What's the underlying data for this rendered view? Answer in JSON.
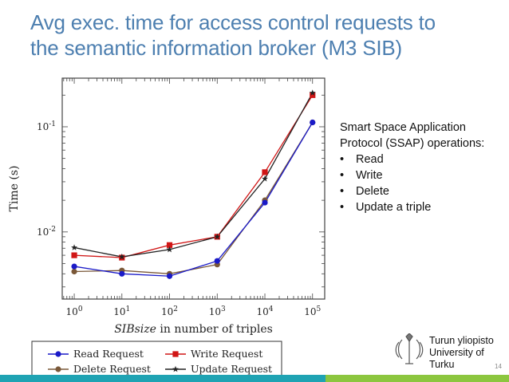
{
  "slide": {
    "title_line1": "Avg exec. time for access control  requests to",
    "title_line2": "the semantic information broker (M3 SIB)",
    "side_intro": "Smart Space Application Protocol (SSAP) operations:",
    "side_bullets": [
      "Read",
      "Write",
      "Delete",
      "Update a triple"
    ],
    "logo_line1": "Turun yliopisto",
    "logo_line2": "University of Turku",
    "page_number": "14",
    "colors": {
      "title": "#4d7fb0",
      "footer_teal": "#1fa3b3",
      "footer_green": "#8cc63f"
    }
  },
  "chart_data": {
    "type": "line",
    "xscale": "log",
    "yscale": "log",
    "x": [
      1,
      10,
      100,
      1000,
      10000,
      100000
    ],
    "x_tick_labels": [
      "10^0",
      "10^1",
      "10^2",
      "10^3",
      "10^4",
      "10^5"
    ],
    "y_tick_labels": [
      "10^-1",
      "10^-2"
    ],
    "xlabel": "SIBsize in number of triples",
    "xlabel_italic": "SIBsize",
    "xlabel_rest": " in number of triples",
    "ylabel": "Time (s)",
    "xlim": [
      0.56,
      180000
    ],
    "ylim": [
      0.0023,
      0.29
    ],
    "grid": false,
    "legend_position": "bottom-outside",
    "series": [
      {
        "name": "Read Request",
        "color": "#1a1ac8",
        "marker": "circle",
        "values": [
          0.0047,
          0.004,
          0.0038,
          0.0053,
          0.019,
          0.11
        ]
      },
      {
        "name": "Write Request",
        "color": "#d01515",
        "marker": "square",
        "values": [
          0.006,
          0.0057,
          0.0075,
          0.009,
          0.037,
          0.2
        ]
      },
      {
        "name": "Delete Request",
        "color": "#7a5838",
        "marker": "circle",
        "values": [
          0.0042,
          0.0043,
          0.004,
          0.0049,
          0.02,
          0.11
        ]
      },
      {
        "name": "Update Request",
        "color": "#222222",
        "marker": "star",
        "values": [
          0.0071,
          0.0058,
          0.0068,
          0.009,
          0.032,
          0.21
        ]
      }
    ]
  }
}
